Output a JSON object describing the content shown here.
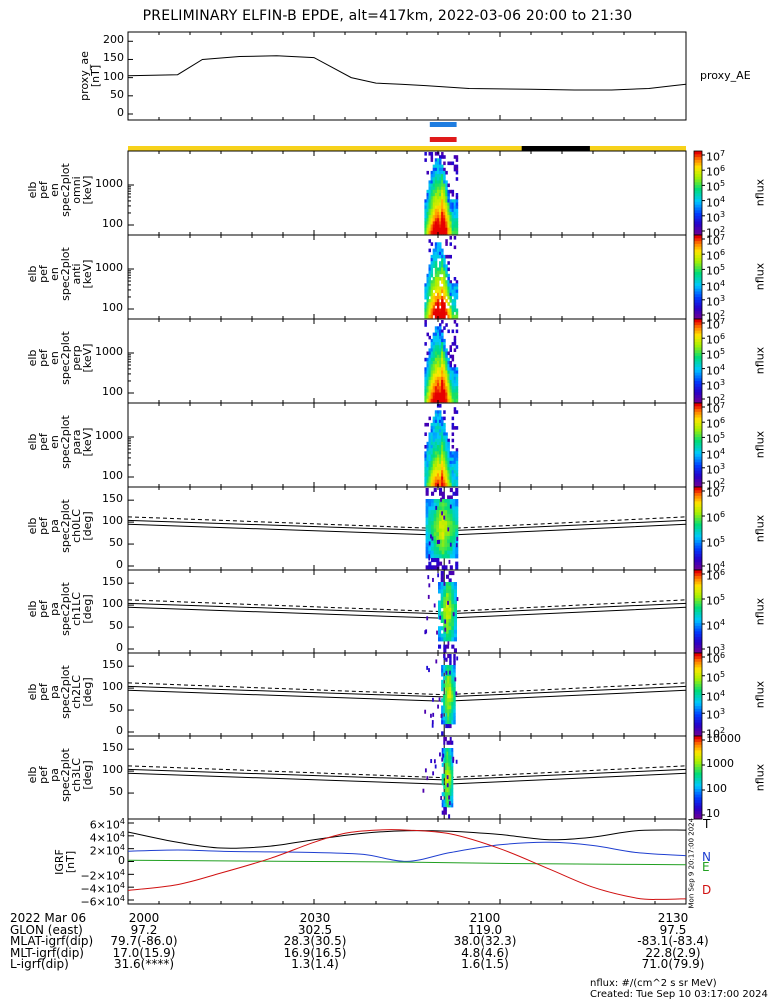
{
  "title": "PRELIMINARY ELFIN-B EPDE, alt=417km, 2022-03-06 20:00 to 21:30",
  "colors": {
    "bar_yellow": "#f7d21b",
    "bar_black": "#000000",
    "marker_blue": "#1f7de0",
    "marker_red": "#e01a1a",
    "comp_T": "#000000",
    "comp_N": "#1f3fd0",
    "comp_E": "#22a022",
    "comp_D": "#d01010"
  },
  "panels": [
    {
      "id": "proxy_ae",
      "label": [
        "proxy_ae",
        "[nT]"
      ],
      "right_label": "proxy_AE",
      "yticks": [
        "200",
        "150",
        "100",
        "50",
        "0"
      ]
    },
    {
      "id": "omni",
      "label": [
        "elb",
        "pef",
        "en",
        "spec2plot",
        "omni",
        "[keV]"
      ],
      "yticks": [
        "1000",
        "100"
      ],
      "cbar": {
        "ticks": [
          "10^7",
          "10^6",
          "10^5",
          "10^4",
          "10^3",
          "10^2"
        ],
        "title": "nflux"
      }
    },
    {
      "id": "anti",
      "label": [
        "elb",
        "pef",
        "en",
        "spec2plot",
        "anti",
        "[keV]"
      ],
      "yticks": [
        "1000",
        "100"
      ],
      "cbar": {
        "ticks": [
          "10^7",
          "10^6",
          "10^5",
          "10^4",
          "10^3",
          "10^2"
        ],
        "title": "nflux"
      }
    },
    {
      "id": "perp",
      "label": [
        "elb",
        "pef",
        "en",
        "spec2plot",
        "perp",
        "[keV]"
      ],
      "yticks": [
        "1000",
        "100"
      ],
      "cbar": {
        "ticks": [
          "10^7",
          "10^6",
          "10^5",
          "10^4",
          "10^3",
          "10^2"
        ],
        "title": "nflux"
      }
    },
    {
      "id": "para",
      "label": [
        "elb",
        "pef",
        "en",
        "spec2plot",
        "para",
        "[keV]"
      ],
      "yticks": [
        "1000",
        "100"
      ],
      "cbar": {
        "ticks": [
          "10^7",
          "10^6",
          "10^5",
          "10^4",
          "10^3",
          "10^2"
        ],
        "title": "nflux"
      }
    },
    {
      "id": "ch0LC",
      "label": [
        "elb",
        "pef",
        "pa",
        "spec2plot",
        "ch0LC",
        "[deg]"
      ],
      "yticks": [
        "150",
        "100",
        "50",
        "0"
      ],
      "cbar": {
        "ticks": [
          "10^7",
          "10^6",
          "10^5",
          "10^4"
        ],
        "title": "nflux"
      }
    },
    {
      "id": "ch1LC",
      "label": [
        "elb",
        "pef",
        "pa",
        "spec2plot",
        "ch1LC",
        "[deg]"
      ],
      "yticks": [
        "150",
        "100",
        "50",
        "0"
      ],
      "cbar": {
        "ticks": [
          "10^6",
          "10^5",
          "10^4",
          "10^3"
        ],
        "title": "nflux"
      }
    },
    {
      "id": "ch2LC",
      "label": [
        "elb",
        "pef",
        "pa",
        "spec2plot",
        "ch2LC",
        "[deg]"
      ],
      "yticks": [
        "150",
        "100",
        "50",
        "0"
      ],
      "cbar": {
        "ticks": [
          "10^6",
          "10^5",
          "10^4",
          "10^3",
          "10^2"
        ],
        "title": "nflux"
      }
    },
    {
      "id": "ch3LC",
      "label": [
        "elb",
        "pef",
        "pa",
        "spec2plot",
        "ch3LC",
        "[deg]"
      ],
      "yticks": [
        "150",
        "100",
        "50"
      ],
      "cbar": {
        "ticks": [
          "10000",
          "1000",
          "100",
          "10"
        ],
        "title": "nflux"
      }
    },
    {
      "id": "igrf",
      "label": [
        "IGRF",
        "[nT]"
      ],
      "yticks": [
        "6×10^4",
        "4×10^4",
        "2×10^4",
        "0",
        "−2×10^4",
        "−4×10^4",
        "−6×10^4"
      ],
      "components": [
        "T",
        "N",
        "E",
        "D"
      ],
      "side_note": "Mon Sep 9 20:17:00 2024"
    }
  ],
  "footer": {
    "rows": [
      [
        "2022 Mar 06",
        "2000",
        "2030",
        "2100",
        "2130"
      ],
      [
        "GLON (east)",
        "97.2",
        "302.5",
        "119.0",
        "97.5"
      ],
      [
        "MLAT-igrf(dip)",
        "79.7(-86.0)",
        "28.3(30.5)",
        "38.0(32.3)",
        "-83.1(-83.4)"
      ],
      [
        "MLT-igrf(dip)",
        "17.0(15.9)",
        "16.9(16.5)",
        "4.8(4.6)",
        "22.8(2.9)"
      ],
      [
        "L-igrf(dip)",
        "31.6(****)",
        "1.3(1.4)",
        "1.6(1.5)",
        "71.0(79.9)"
      ]
    ],
    "units_note": "nflux: #/(cm^2 s sr MeV)",
    "created": "Created: Tue Sep 10 03:17:00 2024"
  },
  "chart_data": {
    "type": "line",
    "x_range_time": [
      "20:00",
      "21:30"
    ],
    "x_tick_labels": [
      "2000",
      "2030",
      "2100",
      "2130"
    ],
    "proxy_ae": {
      "ylim": [
        0,
        220
      ],
      "t_min": [
        0,
        8,
        12,
        18,
        24,
        30,
        36,
        40,
        44,
        48,
        55,
        65,
        72,
        78,
        84,
        88,
        90
      ],
      "values": [
        105,
        108,
        150,
        158,
        160,
        155,
        100,
        85,
        82,
        78,
        70,
        68,
        66,
        66,
        70,
        78,
        82
      ]
    },
    "igrf": {
      "ylim": [
        -60000,
        60000
      ],
      "series": [
        {
          "name": "T",
          "t_min": [
            0,
            8,
            15,
            23,
            30,
            38,
            45,
            52,
            60,
            68,
            75,
            82,
            90
          ],
          "values": [
            46000,
            30000,
            21000,
            24000,
            34000,
            44000,
            48000,
            47000,
            42000,
            34000,
            38000,
            48000,
            49000
          ]
        },
        {
          "name": "N",
          "t_min": [
            0,
            8,
            15,
            23,
            30,
            38,
            45,
            52,
            60,
            68,
            75,
            82,
            90
          ],
          "values": [
            16000,
            18000,
            16000,
            15000,
            14000,
            11000,
            200,
            14000,
            26000,
            30000,
            25000,
            14000,
            9000
          ]
        },
        {
          "name": "E",
          "t_min": [
            0,
            15,
            30,
            45,
            60,
            75,
            90
          ],
          "values": [
            2000,
            1000,
            0,
            -1000,
            -3000,
            -4000,
            -5000
          ]
        },
        {
          "name": "D",
          "t_min": [
            0,
            8,
            15,
            23,
            30,
            35,
            40,
            45,
            52,
            60,
            68,
            75,
            82,
            86,
            90
          ],
          "values": [
            -45000,
            -36000,
            -18000,
            5000,
            30000,
            44000,
            49000,
            49000,
            43000,
            20000,
            -12000,
            -40000,
            -57000,
            -59000,
            -58000
          ]
        }
      ]
    },
    "science_zone_minutes": [
      49,
      53
    ]
  }
}
